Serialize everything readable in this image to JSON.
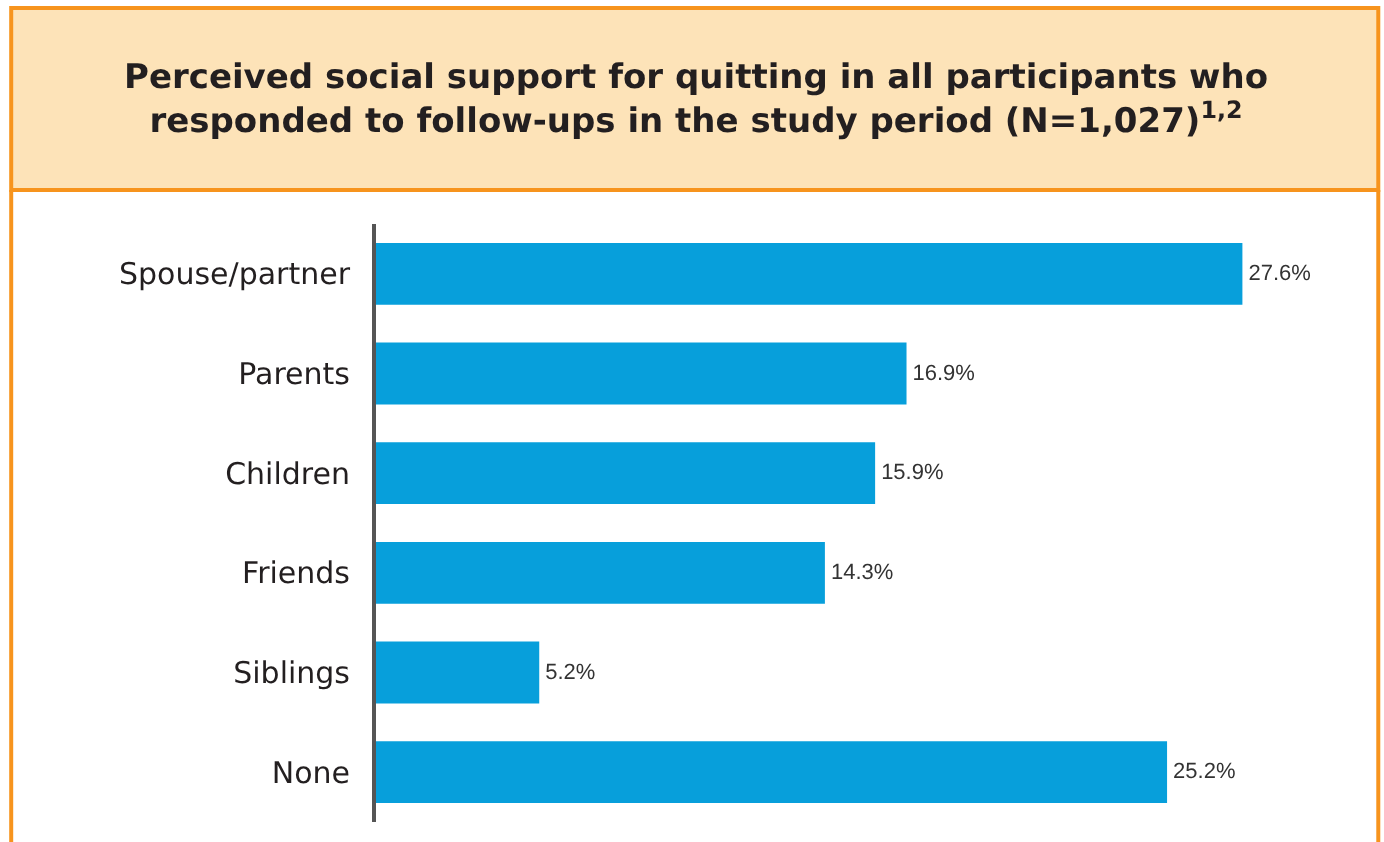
{
  "chart_data": {
    "type": "bar",
    "orientation": "horizontal",
    "title": "Perceived social support for quitting in all participants who responded to follow-ups in the study period (N=1,027)$^{1,2}$",
    "categories": [
      "Spouse/partner",
      "Parents",
      "Children",
      "Friends",
      "Siblings",
      "None"
    ],
    "values": [
      27.6,
      16.9,
      15.9,
      14.3,
      5.2,
      25.2
    ],
    "value_labels": [
      "27.6%",
      "16.9%",
      "15.9%",
      "14.3%",
      "5.2%",
      "25.2%"
    ],
    "color": "#079fdb"
  }
}
